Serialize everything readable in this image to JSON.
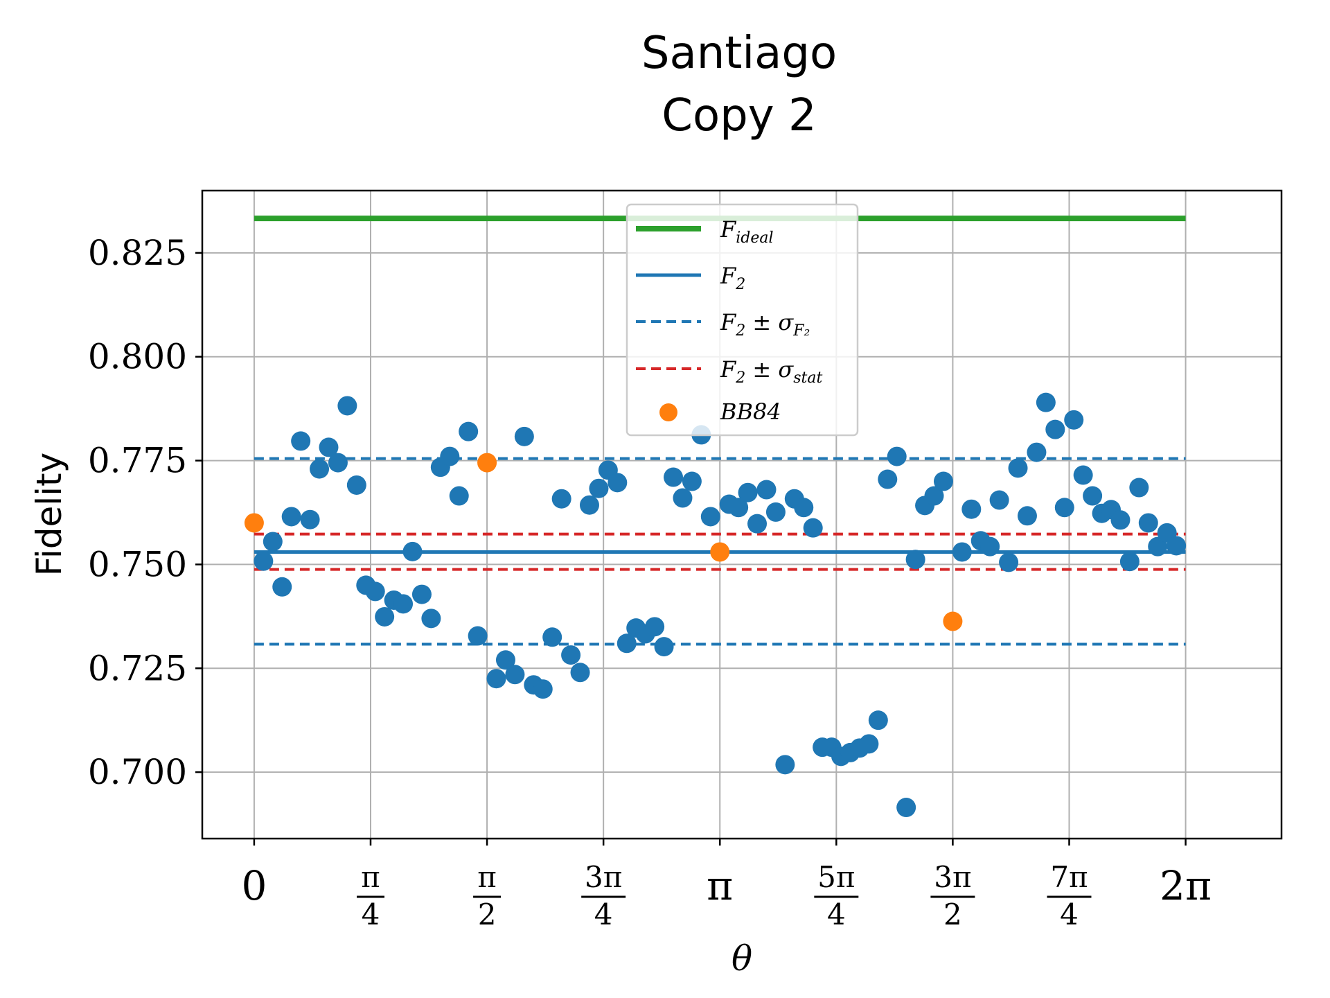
{
  "chart_data": {
    "type": "scatter",
    "title": [
      "Santiago",
      "Copy 2"
    ],
    "xlabel": "θ",
    "ylabel": "Fidelity",
    "xlim": [
      -0.35,
      6.93
    ],
    "ylim": [
      0.684,
      0.84
    ],
    "grid": true,
    "legend_position": "top-center",
    "x_ticks": [
      {
        "value": 0,
        "num": "0",
        "den": ""
      },
      {
        "value": 0.7854,
        "num": "π",
        "den": "4"
      },
      {
        "value": 1.5708,
        "num": "π",
        "den": "2"
      },
      {
        "value": 2.3562,
        "num": "3π",
        "den": "4"
      },
      {
        "value": 3.1416,
        "num": "π",
        "den": ""
      },
      {
        "value": 3.927,
        "num": "5π",
        "den": "4"
      },
      {
        "value": 4.7124,
        "num": "3π",
        "den": "2"
      },
      {
        "value": 5.4978,
        "num": "7π",
        "den": "4"
      },
      {
        "value": 6.2832,
        "num": "2π",
        "den": ""
      }
    ],
    "y_ticks": [
      {
        "value": 0.7,
        "label": "0.700"
      },
      {
        "value": 0.725,
        "label": "0.725"
      },
      {
        "value": 0.75,
        "label": "0.750"
      },
      {
        "value": 0.775,
        "label": "0.775"
      },
      {
        "value": 0.8,
        "label": "0.800"
      },
      {
        "value": 0.825,
        "label": "0.825"
      }
    ],
    "colors": {
      "blue": "#1f77b4",
      "orange": "#ff7f0e",
      "green": "#2ca02c",
      "red": "#d62728"
    },
    "lines": [
      {
        "key": "ideal",
        "legend_main": "F",
        "legend_sub": "ideal",
        "legend_tail": "",
        "legend_sub2": "",
        "y": 0.8333,
        "color": "#2ca02c",
        "style": "solid",
        "width": 8
      },
      {
        "key": "f2",
        "legend_main": "F",
        "legend_sub": "2",
        "legend_tail": "",
        "legend_sub2": "",
        "y": 0.753,
        "color": "#1f77b4",
        "style": "solid",
        "width": 5
      },
      {
        "key": "f2_sigma_upper",
        "legend_main": "F",
        "legend_sub": "2",
        "legend_tail": " ± σ",
        "legend_sub2": "F₂",
        "y": 0.7755,
        "color": "#1f77b4",
        "style": "dashed",
        "width": 4,
        "show_in_legend": true
      },
      {
        "key": "f2_sigma_lower",
        "y": 0.7308,
        "color": "#1f77b4",
        "style": "dashed",
        "width": 4,
        "show_in_legend": false
      },
      {
        "key": "f2_stat_upper",
        "legend_main": "F",
        "legend_sub": "2",
        "legend_tail": " ± σ",
        "legend_sub2": "stat",
        "y": 0.7573,
        "color": "#d62728",
        "style": "dashed",
        "width": 4,
        "show_in_legend": true
      },
      {
        "key": "f2_stat_lower",
        "y": 0.7488,
        "color": "#d62728",
        "style": "dashed",
        "width": 4,
        "show_in_legend": false
      }
    ],
    "line_x_range": [
      0,
      6.2832
    ],
    "series": [
      {
        "name": "",
        "color": "#1f77b4",
        "x": [
          0.0628,
          0.1257,
          0.1885,
          0.2513,
          0.3142,
          0.377,
          0.4398,
          0.5027,
          0.5655,
          0.6283,
          0.6912,
          0.754,
          0.8168,
          0.8796,
          0.9425,
          1.0053,
          1.0681,
          1.131,
          1.1938,
          1.2566,
          1.3195,
          1.3823,
          1.4451,
          1.508,
          1.6336,
          1.6965,
          1.7593,
          1.8221,
          1.885,
          1.9478,
          2.0106,
          2.0735,
          2.1363,
          2.1991,
          2.2619,
          2.3248,
          2.3876,
          2.4504,
          2.5133,
          2.5761,
          2.6389,
          2.7018,
          2.7646,
          2.8274,
          2.8903,
          2.9531,
          3.0159,
          3.0788,
          3.2044,
          3.2673,
          3.3301,
          3.3929,
          3.4558,
          3.5186,
          3.5814,
          3.6442,
          3.7071,
          3.7699,
          3.8327,
          3.8956,
          3.9584,
          4.0212,
          4.0841,
          4.1469,
          4.2097,
          4.2726,
          4.3354,
          4.3982,
          4.4611,
          4.5239,
          4.5867,
          4.6496,
          4.7752,
          4.8381,
          4.9009,
          4.9637,
          5.0265,
          5.0894,
          5.1522,
          5.215,
          5.2779,
          5.3407,
          5.4035,
          5.4664,
          5.5292,
          5.592,
          5.6549,
          5.7177,
          5.7805,
          5.8434,
          5.9062,
          5.969,
          6.0319,
          6.0947,
          6.1575,
          6.2204
        ],
        "y": [
          0.7508,
          0.7555,
          0.7446,
          0.7615,
          0.7797,
          0.7608,
          0.773,
          0.7782,
          0.7745,
          0.7882,
          0.7691,
          0.745,
          0.7435,
          0.7374,
          0.7414,
          0.7405,
          0.7531,
          0.7428,
          0.737,
          0.7734,
          0.776,
          0.7665,
          0.782,
          0.7328,
          0.7225,
          0.727,
          0.7235,
          0.7808,
          0.721,
          0.72,
          0.7325,
          0.7658,
          0.7282,
          0.724,
          0.7643,
          0.7683,
          0.7727,
          0.7697,
          0.731,
          0.7347,
          0.7333,
          0.735,
          0.7302,
          0.771,
          0.766,
          0.77,
          0.7812,
          0.7615,
          0.7645,
          0.7637,
          0.7673,
          0.7598,
          0.768,
          0.7626,
          0.7018,
          0.7658,
          0.7637,
          0.7588,
          0.706,
          0.706,
          0.7038,
          0.7047,
          0.7058,
          0.7068,
          0.7125,
          0.7705,
          0.776,
          0.6915,
          0.7512,
          0.7642,
          0.7665,
          0.77,
          0.753,
          0.7633,
          0.7557,
          0.7543,
          0.7655,
          0.7505,
          0.7732,
          0.7617,
          0.777,
          0.789,
          0.7825,
          0.7637,
          0.7848,
          0.7715,
          0.7665,
          0.7623,
          0.7632,
          0.7607,
          0.7507,
          0.7685,
          0.76,
          0.7543,
          0.7576,
          0.7545
        ]
      },
      {
        "name": "BB84",
        "color": "#ff7f0e",
        "x": [
          0,
          1.5708,
          3.1416,
          4.7124
        ],
        "y": [
          0.76,
          0.7745,
          0.753,
          0.7363
        ]
      }
    ]
  }
}
